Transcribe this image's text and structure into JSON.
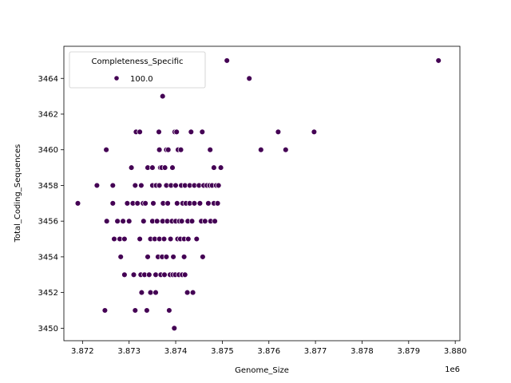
{
  "chart_data": {
    "type": "scatter",
    "xlabel": "Genome_Size",
    "ylabel": "Total_Coding_Sequences",
    "x_offset_label": "1e6",
    "xlim": [
      3.8716,
      3.8801
    ],
    "ylim": [
      3449.3,
      3465.8
    ],
    "x_ticks": [
      3.872,
      3.873,
      3.874,
      3.875,
      3.876,
      3.877,
      3.878,
      3.879,
      3.88
    ],
    "x_tick_labels": [
      "3.872",
      "3.873",
      "3.874",
      "3.875",
      "3.876",
      "3.877",
      "3.878",
      "3.879",
      "3.880"
    ],
    "y_ticks": [
      3450,
      3452,
      3454,
      3456,
      3458,
      3460,
      3462,
      3464
    ],
    "y_tick_labels": [
      "3450",
      "3452",
      "3454",
      "3456",
      "3458",
      "3460",
      "3462",
      "3464"
    ],
    "grid": false,
    "legend": {
      "title": "Completeness_Specific",
      "placement": "top-left",
      "entries": [
        {
          "label": "100.0",
          "color": "#440154"
        }
      ]
    },
    "series": [
      {
        "name": "100.0",
        "color": "#440154",
        "points": [
          [
            3.8719,
            3457
          ],
          [
            3.87231,
            3458
          ],
          [
            3.87248,
            3451
          ],
          [
            3.87251,
            3460
          ],
          [
            3.87252,
            3456
          ],
          [
            3.87265,
            3458
          ],
          [
            3.87265,
            3457
          ],
          [
            3.87268,
            3455
          ],
          [
            3.87275,
            3456
          ],
          [
            3.8728,
            3455
          ],
          [
            3.87282,
            3454
          ],
          [
            3.87287,
            3456
          ],
          [
            3.8729,
            3453
          ],
          [
            3.8729,
            3455
          ],
          [
            3.87296,
            3457
          ],
          [
            3.873,
            3456
          ],
          [
            3.87305,
            3459
          ],
          [
            3.87308,
            3457
          ],
          [
            3.8731,
            3453
          ],
          [
            3.87313,
            3458
          ],
          [
            3.87313,
            3451
          ],
          [
            3.87315,
            3461
          ],
          [
            3.87318,
            3457
          ],
          [
            3.87323,
            3461
          ],
          [
            3.87323,
            3455
          ],
          [
            3.87325,
            3453
          ],
          [
            3.87326,
            3458
          ],
          [
            3.87327,
            3452
          ],
          [
            3.8733,
            3457
          ],
          [
            3.87331,
            3456
          ],
          [
            3.87333,
            3453
          ],
          [
            3.87335,
            3457
          ],
          [
            3.87338,
            3451
          ],
          [
            3.8734,
            3459
          ],
          [
            3.8734,
            3454
          ],
          [
            3.87343,
            3453
          ],
          [
            3.87346,
            3452
          ],
          [
            3.87346,
            3455
          ],
          [
            3.8735,
            3458
          ],
          [
            3.8735,
            3456
          ],
          [
            3.8735,
            3459
          ],
          [
            3.87352,
            3457
          ],
          [
            3.87355,
            3455
          ],
          [
            3.87357,
            3452
          ],
          [
            3.87357,
            3453
          ],
          [
            3.87358,
            3458
          ],
          [
            3.8736,
            3456
          ],
          [
            3.87362,
            3454
          ],
          [
            3.87364,
            3461
          ],
          [
            3.87365,
            3460
          ],
          [
            3.87365,
            3455
          ],
          [
            3.87365,
            3458
          ],
          [
            3.87367,
            3459
          ],
          [
            3.87368,
            3453
          ],
          [
            3.8737,
            3459
          ],
          [
            3.87371,
            3454
          ],
          [
            3.87372,
            3463
          ],
          [
            3.87372,
            3456
          ],
          [
            3.87373,
            3457
          ],
          [
            3.87375,
            3455
          ],
          [
            3.87376,
            3453
          ],
          [
            3.87377,
            3459
          ],
          [
            3.8738,
            3460
          ],
          [
            3.8738,
            3458
          ],
          [
            3.8738,
            3454
          ],
          [
            3.87382,
            3456
          ],
          [
            3.87383,
            3457
          ],
          [
            3.87384,
            3460
          ],
          [
            3.87386,
            3451
          ],
          [
            3.87388,
            3453
          ],
          [
            3.87389,
            3455
          ],
          [
            3.8739,
            3458
          ],
          [
            3.87392,
            3456
          ],
          [
            3.87393,
            3459
          ],
          [
            3.87394,
            3453
          ],
          [
            3.87395,
            3454
          ],
          [
            3.87397,
            3450
          ],
          [
            3.87398,
            3461
          ],
          [
            3.87399,
            3453
          ],
          [
            3.874,
            3458
          ],
          [
            3.874,
            3456
          ],
          [
            3.87402,
            3461
          ],
          [
            3.87403,
            3457
          ],
          [
            3.87404,
            3455
          ],
          [
            3.87405,
            3460
          ],
          [
            3.87407,
            3453
          ],
          [
            3.87408,
            3456
          ],
          [
            3.8741,
            3455
          ],
          [
            3.87411,
            3460
          ],
          [
            3.87412,
            3458
          ],
          [
            3.87413,
            3456
          ],
          [
            3.87414,
            3453
          ],
          [
            3.87415,
            3457
          ],
          [
            3.87418,
            3454
          ],
          [
            3.87418,
            3455
          ],
          [
            3.8742,
            3458
          ],
          [
            3.8742,
            3453
          ],
          [
            3.87422,
            3457
          ],
          [
            3.87425,
            3452
          ],
          [
            3.87426,
            3456
          ],
          [
            3.87427,
            3455
          ],
          [
            3.8743,
            3458
          ],
          [
            3.8743,
            3457
          ],
          [
            3.87433,
            3461
          ],
          [
            3.87435,
            3456
          ],
          [
            3.87437,
            3452
          ],
          [
            3.8744,
            3458
          ],
          [
            3.8744,
            3457
          ],
          [
            3.87445,
            3455
          ],
          [
            3.8745,
            3458
          ],
          [
            3.87452,
            3457
          ],
          [
            3.87455,
            3456
          ],
          [
            3.87457,
            3461
          ],
          [
            3.87458,
            3454
          ],
          [
            3.8746,
            3458
          ],
          [
            3.87463,
            3456
          ],
          [
            3.87467,
            3458
          ],
          [
            3.8747,
            3457
          ],
          [
            3.87473,
            3458
          ],
          [
            3.87474,
            3460
          ],
          [
            3.87475,
            3456
          ],
          [
            3.87478,
            3458
          ],
          [
            3.87482,
            3459
          ],
          [
            3.87482,
            3457
          ],
          [
            3.87484,
            3456
          ],
          [
            3.87487,
            3458
          ],
          [
            3.8749,
            3457
          ],
          [
            3.87492,
            3458
          ],
          [
            3.87497,
            3459
          ],
          [
            3.8751,
            3465
          ],
          [
            3.87558,
            3464
          ],
          [
            3.87583,
            3460
          ],
          [
            3.8762,
            3461
          ],
          [
            3.87636,
            3460
          ],
          [
            3.87697,
            3461
          ],
          [
            3.87964,
            3465
          ]
        ]
      }
    ]
  }
}
